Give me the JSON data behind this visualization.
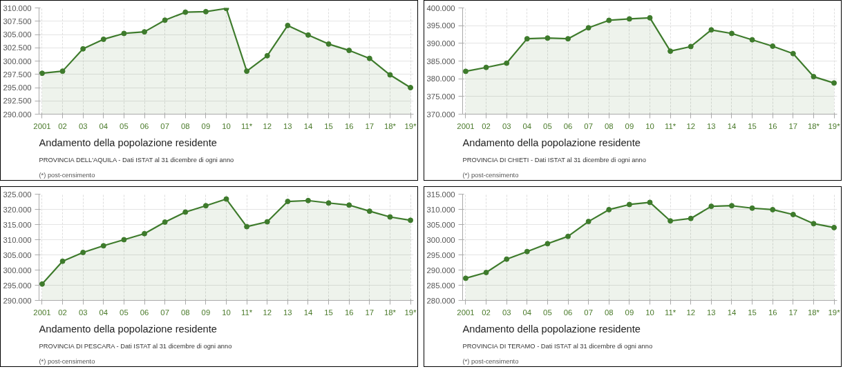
{
  "chart_data": [
    {
      "type": "area",
      "title": "Andamento della popolazione residente",
      "subtitle": "PROVINCIA DELL'AQUILA - Dati ISTAT al 31 dicembre di ogni anno",
      "annotations": [
        "(*) post-censimento"
      ],
      "categories": [
        "2001",
        "02",
        "03",
        "04",
        "05",
        "06",
        "07",
        "08",
        "09",
        "10",
        "11*",
        "12",
        "13",
        "14",
        "15",
        "16",
        "17",
        "18*",
        "19*"
      ],
      "series": [
        {
          "color": "#3e7b2c",
          "values": [
            297700,
            298100,
            302300,
            304100,
            305200,
            305500,
            307700,
            309200,
            309300,
            309900,
            298100,
            301000,
            306700,
            304900,
            303200,
            302000,
            300500,
            297400,
            295000
          ]
        }
      ],
      "ylim": [
        290000,
        310000
      ],
      "yticks": [
        {
          "value": 290000,
          "label": "290.000"
        },
        {
          "value": 292500,
          "label": "292.500"
        },
        {
          "value": 295000,
          "label": "295.000"
        },
        {
          "value": 297500,
          "label": "297.500"
        },
        {
          "value": 300000,
          "label": "300.000"
        },
        {
          "value": 302500,
          "label": "302.500"
        },
        {
          "value": 305000,
          "label": "305.000"
        },
        {
          "value": 307500,
          "label": "307.500"
        },
        {
          "value": 310000,
          "label": "310.000"
        }
      ],
      "grid": true,
      "marker": "circle"
    },
    {
      "type": "area",
      "title": "Andamento della popolazione residente",
      "subtitle": "PROVINCIA DI CHIETI - Dati ISTAT al 31 dicembre di ogni anno",
      "annotations": [
        "(*) post-censimento"
      ],
      "categories": [
        "2001",
        "02",
        "03",
        "04",
        "05",
        "06",
        "07",
        "08",
        "09",
        "10",
        "11*",
        "12",
        "13",
        "14",
        "15",
        "16",
        "17",
        "18*",
        "19*"
      ],
      "series": [
        {
          "color": "#3e7b2c",
          "values": [
            382100,
            383200,
            384400,
            391300,
            391500,
            391300,
            394400,
            396500,
            396900,
            397200,
            387800,
            389100,
            393800,
            392800,
            391000,
            389200,
            387100,
            380600,
            378800
          ]
        }
      ],
      "ylim": [
        370000,
        400000
      ],
      "yticks": [
        {
          "value": 370000,
          "label": "370.000"
        },
        {
          "value": 375000,
          "label": "375.000"
        },
        {
          "value": 380000,
          "label": "380.000"
        },
        {
          "value": 385000,
          "label": "385.000"
        },
        {
          "value": 390000,
          "label": "390.000"
        },
        {
          "value": 395000,
          "label": "395.000"
        },
        {
          "value": 400000,
          "label": "400.000"
        }
      ],
      "grid": true,
      "marker": "circle"
    },
    {
      "type": "area",
      "title": "Andamento della popolazione residente",
      "subtitle": "PROVINCIA DI PESCARA - Dati ISTAT al 31 dicembre di ogni anno",
      "annotations": [
        "(*) post-censimento"
      ],
      "categories": [
        "2001",
        "02",
        "03",
        "04",
        "05",
        "06",
        "07",
        "08",
        "09",
        "10",
        "11*",
        "12",
        "13",
        "14",
        "15",
        "16",
        "17",
        "18*",
        "19*"
      ],
      "series": [
        {
          "color": "#3e7b2c",
          "values": [
            295400,
            302900,
            305800,
            308000,
            310000,
            312000,
            315800,
            319100,
            321200,
            323400,
            314300,
            315900,
            322600,
            322900,
            322100,
            321400,
            319400,
            317500,
            316400
          ]
        }
      ],
      "ylim": [
        290000,
        325000
      ],
      "yticks": [
        {
          "value": 290000,
          "label": "290.000"
        },
        {
          "value": 295000,
          "label": "295.000"
        },
        {
          "value": 300000,
          "label": "300.000"
        },
        {
          "value": 305000,
          "label": "305.000"
        },
        {
          "value": 310000,
          "label": "310.000"
        },
        {
          "value": 315000,
          "label": "315.000"
        },
        {
          "value": 320000,
          "label": "320.000"
        },
        {
          "value": 325000,
          "label": "325.000"
        }
      ],
      "grid": true,
      "marker": "circle"
    },
    {
      "type": "area",
      "title": "Andamento della popolazione residente",
      "subtitle": "PROVINCIA DI TERAMO - Dati ISTAT al 31 dicembre di ogni anno",
      "annotations": [
        "(*) post-censimento"
      ],
      "categories": [
        "2001",
        "02",
        "03",
        "04",
        "05",
        "06",
        "07",
        "08",
        "09",
        "10",
        "11*",
        "12",
        "13",
        "14",
        "15",
        "16",
        "17",
        "18*",
        "19*"
      ],
      "series": [
        {
          "color": "#3e7b2c",
          "values": [
            287300,
            289200,
            293600,
            296100,
            298700,
            301100,
            306000,
            309900,
            311600,
            312300,
            306200,
            307000,
            311000,
            311200,
            310400,
            309900,
            308300,
            305300,
            304000
          ]
        }
      ],
      "ylim": [
        280000,
        315000
      ],
      "yticks": [
        {
          "value": 280000,
          "label": "280.000"
        },
        {
          "value": 285000,
          "label": "285.000"
        },
        {
          "value": 290000,
          "label": "290.000"
        },
        {
          "value": 295000,
          "label": "295.000"
        },
        {
          "value": 300000,
          "label": "300.000"
        },
        {
          "value": 305000,
          "label": "305.000"
        },
        {
          "value": 310000,
          "label": "310.000"
        },
        {
          "value": 315000,
          "label": "315.000"
        }
      ],
      "grid": true,
      "marker": "circle"
    }
  ]
}
